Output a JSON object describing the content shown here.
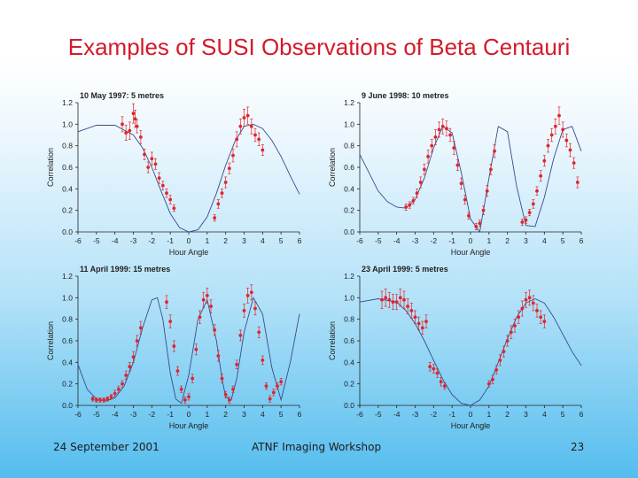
{
  "slide": {
    "title": "Examples of SUSI Observations of Beta Centauri",
    "footer_date": "24 September 2001",
    "footer_center": "ATNF Imaging Workshop",
    "page_number": "23"
  },
  "colors": {
    "title": "#d31a2b",
    "points": "#e0242c",
    "model": "#3a4a8c",
    "axis": "#222222",
    "footer": "#1b1b1b"
  },
  "chart_data": [
    {
      "type": "scatter",
      "title": "10 May 1997: 5 metres",
      "xlabel": "Hour Angle",
      "ylabel": "Correlation",
      "xlim": [
        -6,
        6
      ],
      "ylim": [
        0,
        1.2
      ],
      "xticks": [
        "-6",
        "-5",
        "-4",
        "-3",
        "-2",
        "-1",
        "0",
        "1",
        "2",
        "3",
        "4",
        "5",
        "6"
      ],
      "yticks": [
        "0.0",
        "0.2",
        "0.4",
        "0.6",
        "0.8",
        "1.0",
        "1.2"
      ],
      "model": {
        "name": "model",
        "x": [
          -6,
          -5,
          -4,
          -3,
          -2.5,
          -2,
          -1.5,
          -1,
          -0.5,
          0,
          0.5,
          1,
          1.5,
          2,
          2.5,
          3,
          3.5,
          4,
          4.5,
          5,
          5.5,
          6
        ],
        "y": [
          0.93,
          0.99,
          0.99,
          0.9,
          0.78,
          0.6,
          0.38,
          0.17,
          0.04,
          0.0,
          0.02,
          0.14,
          0.36,
          0.62,
          0.84,
          0.98,
          1.0,
          0.96,
          0.85,
          0.7,
          0.52,
          0.35
        ]
      },
      "series": [
        {
          "name": "observations",
          "x": [
            -3.6,
            -3.4,
            -3.2,
            -3.0,
            -2.9,
            -2.8,
            -2.6,
            -2.4,
            -2.2,
            -2.0,
            -1.8,
            -1.6,
            -1.4,
            -1.2,
            -1.0,
            -0.8,
            1.4,
            1.6,
            1.8,
            2.0,
            2.2,
            2.4,
            2.6,
            2.8,
            3.0,
            3.2,
            3.4,
            3.6,
            3.8,
            4.0
          ],
          "y": [
            1.0,
            0.92,
            0.94,
            1.1,
            1.05,
            0.98,
            0.88,
            0.72,
            0.6,
            0.68,
            0.63,
            0.5,
            0.43,
            0.36,
            0.3,
            0.22,
            0.13,
            0.26,
            0.36,
            0.46,
            0.59,
            0.71,
            0.86,
            0.98,
            1.06,
            1.08,
            0.98,
            0.9,
            0.86,
            0.76
          ],
          "err": [
            0.07,
            0.07,
            0.08,
            0.09,
            0.08,
            0.06,
            0.06,
            0.05,
            0.05,
            0.06,
            0.05,
            0.05,
            0.04,
            0.04,
            0.04,
            0.03,
            0.03,
            0.04,
            0.04,
            0.05,
            0.05,
            0.06,
            0.07,
            0.07,
            0.08,
            0.08,
            0.07,
            0.06,
            0.06,
            0.05
          ]
        }
      ]
    },
    {
      "type": "scatter",
      "title": "9 June 1998: 10  metres",
      "xlabel": "Hour Angle",
      "ylabel": "Correlation",
      "xlim": [
        -6,
        6
      ],
      "ylim": [
        0,
        1.2
      ],
      "xticks": [
        "-6",
        "-5",
        "-4",
        "-3",
        "-2",
        "-1",
        "0",
        "1",
        "2",
        "3",
        "4",
        "5",
        "6"
      ],
      "yticks": [
        "0.0",
        "0.2",
        "0.4",
        "0.6",
        "0.8",
        "1.0",
        "1.2"
      ],
      "model": {
        "name": "model",
        "x": [
          -6,
          -5.5,
          -5,
          -4.5,
          -4,
          -3.5,
          -3,
          -2.5,
          -2,
          -1.5,
          -1,
          -0.5,
          0,
          0.5,
          1,
          1.5,
          2,
          2.5,
          3,
          3.5,
          4,
          4.5,
          5,
          5.5,
          6
        ],
        "y": [
          0.72,
          0.55,
          0.38,
          0.28,
          0.23,
          0.22,
          0.3,
          0.5,
          0.78,
          0.98,
          0.92,
          0.55,
          0.12,
          0.0,
          0.5,
          0.98,
          0.93,
          0.42,
          0.06,
          0.05,
          0.32,
          0.68,
          0.95,
          0.98,
          0.75
        ]
      },
      "series": [
        {
          "name": "observations",
          "x": [
            -3.5,
            -3.3,
            -3.1,
            -2.9,
            -2.7,
            -2.5,
            -2.3,
            -2.1,
            -1.9,
            -1.7,
            -1.5,
            -1.3,
            -1.1,
            -0.9,
            -0.7,
            -0.5,
            -0.3,
            -0.1,
            0.3,
            0.5,
            0.7,
            0.9,
            1.1,
            1.3,
            2.8,
            3.0,
            3.2,
            3.4,
            3.6,
            3.8,
            4.0,
            4.2,
            4.4,
            4.6,
            4.8,
            5.0,
            5.2,
            5.4,
            5.6,
            5.8
          ],
          "y": [
            0.23,
            0.25,
            0.29,
            0.36,
            0.46,
            0.58,
            0.7,
            0.8,
            0.88,
            0.95,
            0.98,
            0.96,
            0.9,
            0.78,
            0.62,
            0.45,
            0.3,
            0.15,
            0.05,
            0.08,
            0.2,
            0.38,
            0.58,
            0.75,
            0.09,
            0.11,
            0.18,
            0.26,
            0.38,
            0.52,
            0.66,
            0.8,
            0.9,
            0.98,
            1.08,
            0.95,
            0.85,
            0.76,
            0.64,
            0.46
          ],
          "err": [
            0.03,
            0.03,
            0.03,
            0.04,
            0.05,
            0.05,
            0.06,
            0.06,
            0.07,
            0.07,
            0.07,
            0.07,
            0.06,
            0.06,
            0.05,
            0.05,
            0.04,
            0.03,
            0.03,
            0.03,
            0.04,
            0.05,
            0.05,
            0.06,
            0.03,
            0.03,
            0.03,
            0.04,
            0.04,
            0.05,
            0.05,
            0.06,
            0.06,
            0.07,
            0.08,
            0.07,
            0.06,
            0.06,
            0.05,
            0.05
          ]
        }
      ]
    },
    {
      "type": "scatter",
      "title": "11 April 1999: 15 metres",
      "xlabel": "Hour Angle",
      "ylabel": "Correlation",
      "xlim": [
        -6,
        6
      ],
      "ylim": [
        0,
        1.2
      ],
      "xticks": [
        "-6",
        "-5",
        "-4",
        "-3",
        "-2",
        "-1",
        "0",
        "1",
        "2",
        "3",
        "4",
        "5",
        "6"
      ],
      "yticks": [
        "0.0",
        "0.2",
        "0.4",
        "0.6",
        "0.8",
        "1.0",
        "1.2"
      ],
      "model": {
        "name": "model",
        "x": [
          -6,
          -5.5,
          -5,
          -4.5,
          -4,
          -3.5,
          -3,
          -2.5,
          -2,
          -1.7,
          -1.4,
          -1.2,
          -1,
          -0.7,
          -0.4,
          0,
          0.5,
          1,
          1.5,
          1.8,
          2,
          2.3,
          2.6,
          3,
          3.5,
          4,
          4.5,
          5,
          5.5,
          6
        ],
        "y": [
          0.38,
          0.15,
          0.06,
          0.04,
          0.07,
          0.18,
          0.4,
          0.72,
          0.98,
          1.0,
          0.8,
          0.55,
          0.3,
          0.06,
          0.02,
          0.28,
          0.8,
          0.98,
          0.6,
          0.25,
          0.08,
          0.05,
          0.25,
          0.68,
          1.0,
          0.85,
          0.35,
          0.05,
          0.4,
          0.85
        ]
      },
      "series": [
        {
          "name": "observations",
          "x": [
            -5.2,
            -5.0,
            -4.8,
            -4.6,
            -4.4,
            -4.2,
            -4.0,
            -3.8,
            -3.6,
            -3.4,
            -3.2,
            -3.0,
            -2.8,
            -2.6,
            -1.2,
            -1.0,
            -0.8,
            -0.6,
            -0.4,
            -0.2,
            0.0,
            0.2,
            0.4,
            0.6,
            0.8,
            1.0,
            1.2,
            1.4,
            1.6,
            1.8,
            2.0,
            2.2,
            2.4,
            2.6,
            2.8,
            3.0,
            3.2,
            3.4,
            3.6,
            3.8,
            4.0,
            4.2,
            4.4,
            4.6,
            4.8,
            5.0
          ],
          "y": [
            0.06,
            0.05,
            0.05,
            0.05,
            0.06,
            0.08,
            0.11,
            0.15,
            0.2,
            0.28,
            0.36,
            0.45,
            0.6,
            0.72,
            0.96,
            0.78,
            0.55,
            0.32,
            0.15,
            0.05,
            0.08,
            0.25,
            0.52,
            0.82,
            0.98,
            1.02,
            0.92,
            0.7,
            0.46,
            0.25,
            0.1,
            0.05,
            0.15,
            0.38,
            0.65,
            0.88,
            1.02,
            1.05,
            0.9,
            0.68,
            0.42,
            0.18,
            0.06,
            0.12,
            0.18,
            0.22
          ],
          "err": [
            0.02,
            0.02,
            0.02,
            0.02,
            0.02,
            0.02,
            0.03,
            0.03,
            0.03,
            0.04,
            0.04,
            0.05,
            0.05,
            0.06,
            0.06,
            0.06,
            0.05,
            0.04,
            0.03,
            0.03,
            0.03,
            0.04,
            0.05,
            0.06,
            0.07,
            0.07,
            0.06,
            0.05,
            0.05,
            0.04,
            0.03,
            0.03,
            0.03,
            0.04,
            0.05,
            0.06,
            0.07,
            0.07,
            0.06,
            0.05,
            0.04,
            0.03,
            0.03,
            0.03,
            0.03,
            0.03
          ]
        }
      ]
    },
    {
      "type": "scatter",
      "title": "23 April 1999: 5 metres",
      "xlabel": "Hour Angle",
      "ylabel": "Correlation",
      "xlim": [
        -6,
        6
      ],
      "ylim": [
        0,
        1.2
      ],
      "xticks": [
        "-6",
        "-5",
        "-4",
        "-3",
        "-2",
        "-1",
        "0",
        "1",
        "2",
        "3",
        "4",
        "5",
        "6"
      ],
      "yticks": [
        "0.0",
        "0.2",
        "0.4",
        "0.6",
        "0.8",
        "1.0",
        "1.2"
      ],
      "model": {
        "name": "model",
        "x": [
          -6,
          -5,
          -4,
          -3.5,
          -3,
          -2.5,
          -2,
          -1.5,
          -1,
          -0.5,
          0,
          0.5,
          1,
          1.5,
          2,
          2.5,
          3,
          3.5,
          4,
          4.5,
          5,
          5.5,
          6
        ],
        "y": [
          0.96,
          0.99,
          0.96,
          0.88,
          0.76,
          0.6,
          0.42,
          0.24,
          0.1,
          0.02,
          0.0,
          0.05,
          0.18,
          0.4,
          0.62,
          0.82,
          0.95,
          0.99,
          0.95,
          0.82,
          0.66,
          0.5,
          0.37
        ]
      },
      "series": [
        {
          "name": "observations",
          "x": [
            -4.8,
            -4.6,
            -4.4,
            -4.2,
            -4.0,
            -3.8,
            -3.6,
            -3.4,
            -3.2,
            -3.0,
            -2.8,
            -2.6,
            -2.4,
            -2.2,
            -2.0,
            -1.8,
            -1.6,
            -1.4,
            1.0,
            1.2,
            1.4,
            1.6,
            1.8,
            2.0,
            2.2,
            2.4,
            2.6,
            2.8,
            3.0,
            3.2,
            3.4,
            3.6,
            3.8,
            4.0
          ],
          "y": [
            0.98,
            1.0,
            0.98,
            0.96,
            0.96,
            1.0,
            0.98,
            0.92,
            0.88,
            0.82,
            0.76,
            0.72,
            0.78,
            0.36,
            0.34,
            0.3,
            0.22,
            0.18,
            0.2,
            0.24,
            0.33,
            0.42,
            0.5,
            0.6,
            0.68,
            0.74,
            0.82,
            0.9,
            0.98,
            1.0,
            0.95,
            0.88,
            0.82,
            0.78
          ],
          "err": [
            0.08,
            0.08,
            0.07,
            0.07,
            0.07,
            0.08,
            0.08,
            0.07,
            0.07,
            0.06,
            0.06,
            0.06,
            0.06,
            0.04,
            0.04,
            0.04,
            0.04,
            0.03,
            0.03,
            0.04,
            0.04,
            0.05,
            0.05,
            0.05,
            0.06,
            0.06,
            0.06,
            0.07,
            0.07,
            0.07,
            0.07,
            0.06,
            0.06,
            0.06
          ]
        }
      ]
    }
  ]
}
